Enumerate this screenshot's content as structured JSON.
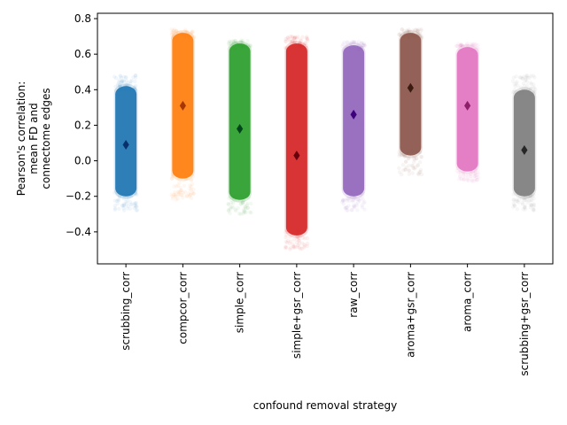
{
  "chart_data": {
    "type": "scatter",
    "subtype": "strip",
    "title": "",
    "xlabel": "confound removal strategy",
    "ylabel_lines": [
      "Pearson's correlation:",
      "mean FD and",
      "connectome edges"
    ],
    "ylim": [
      -0.58,
      0.83
    ],
    "yticks": [
      -0.4,
      -0.2,
      0.0,
      0.2,
      0.4,
      0.6,
      0.8
    ],
    "ytick_labels": [
      "−0.4",
      "−0.2",
      "0.0",
      "0.2",
      "0.4",
      "0.6",
      "0.8"
    ],
    "grid": false,
    "legend": "none",
    "categories": [
      "scrubbing_corr",
      "compcor_corr",
      "simple_corr",
      "simple+gsr_corr",
      "raw_corr",
      "aroma+gsr_corr",
      "aroma_corr",
      "scrubbing+gsr_corr"
    ],
    "series": [
      {
        "category": "scrubbing_corr",
        "color": "#1f77b4",
        "marker_color": "#08306b",
        "mean": 0.09,
        "dense_min": -0.2,
        "dense_max": 0.42,
        "tail_min": -0.28,
        "tail_max": 0.48
      },
      {
        "category": "compcor_corr",
        "color": "#ff7f0e",
        "marker_color": "#a63603",
        "mean": 0.31,
        "dense_min": -0.1,
        "dense_max": 0.72,
        "tail_min": -0.22,
        "tail_max": 0.74
      },
      {
        "category": "simple_corr",
        "color": "#2ca02c",
        "marker_color": "#00441b",
        "mean": 0.18,
        "dense_min": -0.22,
        "dense_max": 0.66,
        "tail_min": -0.3,
        "tail_max": 0.68
      },
      {
        "category": "simple+gsr_corr",
        "color": "#d62728",
        "marker_color": "#67000d",
        "mean": 0.03,
        "dense_min": -0.42,
        "dense_max": 0.66,
        "tail_min": -0.5,
        "tail_max": 0.7
      },
      {
        "category": "raw_corr",
        "color": "#9467bd",
        "marker_color": "#3f007d",
        "mean": 0.26,
        "dense_min": -0.2,
        "dense_max": 0.65,
        "tail_min": -0.28,
        "tail_max": 0.67
      },
      {
        "category": "aroma+gsr_corr",
        "color": "#8c564b",
        "marker_color": "#3b1a10",
        "mean": 0.41,
        "dense_min": 0.03,
        "dense_max": 0.72,
        "tail_min": -0.08,
        "tail_max": 0.74
      },
      {
        "category": "aroma_corr",
        "color": "#e377c2",
        "marker_color": "#8e1f6b",
        "mean": 0.31,
        "dense_min": -0.06,
        "dense_max": 0.64,
        "tail_min": -0.12,
        "tail_max": 0.66
      },
      {
        "category": "scrubbing+gsr_corr",
        "color": "#7f7f7f",
        "marker_color": "#262626",
        "mean": 0.06,
        "dense_min": -0.2,
        "dense_max": 0.4,
        "tail_min": -0.28,
        "tail_max": 0.48
      }
    ]
  }
}
